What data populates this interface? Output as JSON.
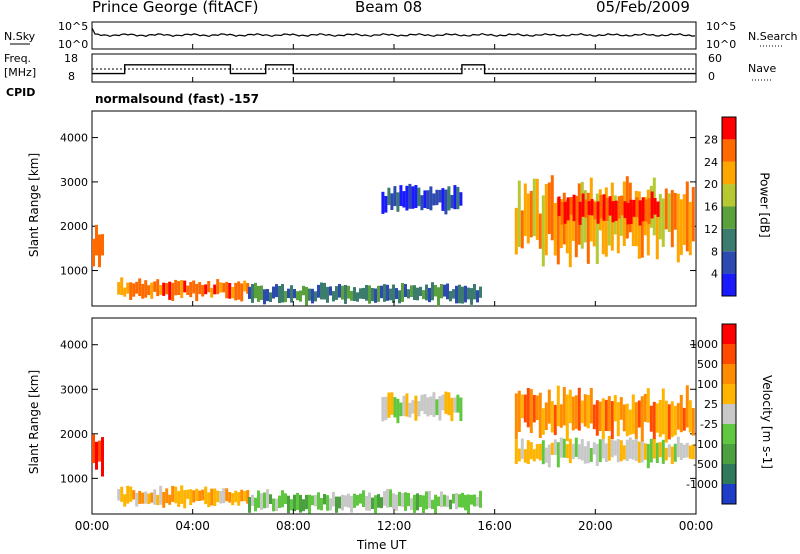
{
  "header": {
    "station": "Prince George (fitACF)",
    "beam": "Beam 08",
    "date": "05/Feb/2009"
  },
  "noise_panel": {
    "left_label": "N.Sky",
    "right_label": "N.Search",
    "left_ticks": [
      "10^5",
      "10^0"
    ],
    "right_ticks": [
      "10^5",
      "10^0"
    ]
  },
  "freq_panel": {
    "left_label": "Freq.",
    "unit": "[MHz]",
    "cpid_label": "CPID",
    "right_label": "Nave",
    "left_ticks": [
      "18",
      "8"
    ],
    "right_ticks": [
      "60",
      "0"
    ],
    "freq_steps": [
      {
        "start": 0.0,
        "end": 1.3,
        "value": 10
      },
      {
        "start": 1.3,
        "end": 5.5,
        "value": 14
      },
      {
        "start": 5.5,
        "end": 6.9,
        "value": 10
      },
      {
        "start": 6.9,
        "end": 8.0,
        "value": 14
      },
      {
        "start": 8.0,
        "end": 14.7,
        "value": 10
      },
      {
        "start": 14.7,
        "end": 15.6,
        "value": 14
      },
      {
        "start": 15.6,
        "end": 24.0,
        "value": 10
      }
    ],
    "nave_level": 12.5
  },
  "cpid_text": "normalsound (fast) -157",
  "chart_data": [
    {
      "type": "heatmap",
      "name": "power",
      "ylabel": "Slant Range [km]",
      "ylim": [
        200,
        4600
      ],
      "yticks": [
        "1000",
        "2000",
        "3000",
        "4000"
      ],
      "colorbar": {
        "label": "Power [dB]",
        "ticks": [
          "4",
          "8",
          "12",
          "16",
          "20",
          "24",
          "28"
        ],
        "colors": [
          "#1a1aff",
          "#2d4ab0",
          "#3c7c6e",
          "#5aa03c",
          "#b6c832",
          "#ffa500",
          "#ff6a00",
          "#ff0000"
        ]
      },
      "regions": [
        {
          "t0": 0.0,
          "t1": 0.5,
          "r0": 1050,
          "r1": 2050,
          "level": 6
        },
        {
          "t0": 1.0,
          "t1": 6.2,
          "r0": 350,
          "r1": 800,
          "level": 6
        },
        {
          "t0": 6.2,
          "t1": 15.5,
          "r0": 250,
          "r1": 700,
          "level": 2
        },
        {
          "t0": 11.5,
          "t1": 14.7,
          "r0": 2300,
          "r1": 2900,
          "level": 1
        },
        {
          "t0": 16.8,
          "t1": 24.0,
          "r0": 1300,
          "r1": 3000,
          "level": 5
        },
        {
          "t0": 18.5,
          "t1": 22.5,
          "r0": 2050,
          "r1": 2700,
          "level": 7
        }
      ]
    },
    {
      "type": "heatmap",
      "name": "velocity",
      "ylabel": "Slant Range [km]",
      "ylim": [
        200,
        4600
      ],
      "yticks": [
        "1000",
        "2000",
        "3000",
        "4000"
      ],
      "colorbar": {
        "label": "Velocity [m s-1]",
        "ticks": [
          "1000",
          "500",
          "100",
          "25",
          "-25",
          "-100",
          "-500",
          "-1000"
        ],
        "colors": [
          "#1e3cc8",
          "#2e7a5a",
          "#4ca040",
          "#60c840",
          "#c8c8c8",
          "#ffb400",
          "#ff8c00",
          "#ff4a00",
          "#ff0000"
        ]
      },
      "regions": [
        {
          "t0": 0.0,
          "t1": 0.5,
          "r0": 1050,
          "r1": 2050,
          "level": 8
        },
        {
          "t0": 1.0,
          "t1": 6.2,
          "r0": 350,
          "r1": 800,
          "level": 5
        },
        {
          "t0": 6.2,
          "t1": 15.5,
          "r0": 250,
          "r1": 700,
          "level": 3
        },
        {
          "t0": 11.5,
          "t1": 14.7,
          "r0": 2300,
          "r1": 2900,
          "level": 4
        },
        {
          "t0": 16.8,
          "t1": 24.0,
          "r0": 1300,
          "r1": 1900,
          "level": 4
        },
        {
          "t0": 16.8,
          "t1": 24.0,
          "r0": 1900,
          "r1": 3000,
          "level": 6
        }
      ]
    }
  ],
  "time_axis": {
    "label": "Time UT",
    "ticks": [
      "00:00",
      "04:00",
      "08:00",
      "12:00",
      "16:00",
      "20:00",
      "00:00"
    ]
  }
}
